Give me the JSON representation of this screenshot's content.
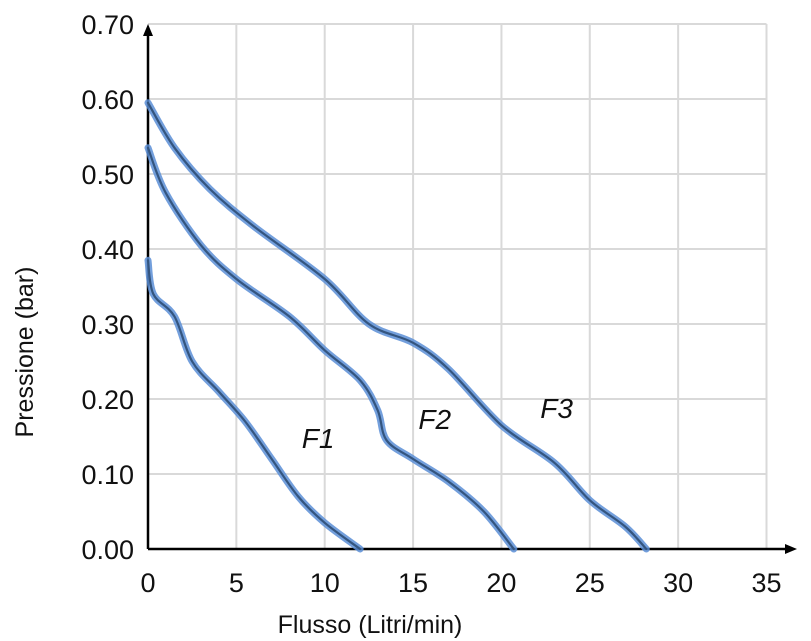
{
  "chart_data": {
    "type": "line",
    "xlabel": "Flusso (Litri/min)",
    "ylabel": "Pressione (bar)",
    "xlim": [
      0,
      35
    ],
    "ylim": [
      0,
      0.7
    ],
    "xticks": [
      0,
      5,
      10,
      15,
      20,
      25,
      30,
      35
    ],
    "xtick_labels": [
      "0",
      "5",
      "10",
      "15",
      "20",
      "25",
      "30",
      "35"
    ],
    "yticks": [
      0,
      0.1,
      0.2,
      0.3,
      0.4,
      0.5,
      0.6,
      0.7
    ],
    "ytick_labels": [
      "0.00",
      "0.10",
      "0.20",
      "0.30",
      "0.40",
      "0.50",
      "0.60",
      "0.70"
    ],
    "grid": true,
    "series_color": "#5b8ed6",
    "series": [
      {
        "name": "F1",
        "label_at": [
          8.7,
          0.135
        ],
        "points": [
          [
            0,
            0.385
          ],
          [
            0.3,
            0.34
          ],
          [
            1.5,
            0.31
          ],
          [
            2.5,
            0.25
          ],
          [
            4,
            0.21
          ],
          [
            5.5,
            0.17
          ],
          [
            7,
            0.12
          ],
          [
            8.5,
            0.07
          ],
          [
            10,
            0.035
          ],
          [
            12,
            0.0
          ]
        ]
      },
      {
        "name": "F2",
        "label_at": [
          15.3,
          0.16
        ],
        "points": [
          [
            0,
            0.535
          ],
          [
            1,
            0.475
          ],
          [
            3,
            0.405
          ],
          [
            5,
            0.36
          ],
          [
            8,
            0.31
          ],
          [
            10,
            0.265
          ],
          [
            12,
            0.225
          ],
          [
            13,
            0.185
          ],
          [
            13.5,
            0.145
          ],
          [
            15,
            0.12
          ],
          [
            17,
            0.09
          ],
          [
            19,
            0.05
          ],
          [
            20.7,
            0.0
          ]
        ]
      },
      {
        "name": "F3",
        "label_at": [
          22.2,
          0.175
        ],
        "points": [
          [
            0,
            0.595
          ],
          [
            1.5,
            0.535
          ],
          [
            3.5,
            0.48
          ],
          [
            6,
            0.43
          ],
          [
            10,
            0.36
          ],
          [
            12.5,
            0.3
          ],
          [
            15,
            0.275
          ],
          [
            17,
            0.24
          ],
          [
            20,
            0.165
          ],
          [
            23,
            0.115
          ],
          [
            25,
            0.065
          ],
          [
            27,
            0.03
          ],
          [
            28.2,
            0.0
          ]
        ]
      }
    ]
  }
}
